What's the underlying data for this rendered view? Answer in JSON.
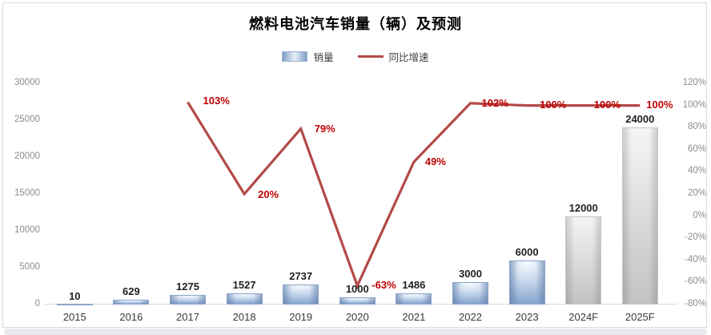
{
  "title": "燃料电池汽车销量（辆）及预测",
  "legend": {
    "bar_label": "销量",
    "line_label": "同比增速"
  },
  "chart_data": {
    "type": "bar+line combo",
    "categories": [
      "2015",
      "2016",
      "2017",
      "2018",
      "2019",
      "2020",
      "2021",
      "2022",
      "2023",
      "2024F",
      "2025F"
    ],
    "series": [
      {
        "name": "销量",
        "type": "bar",
        "axis": "left",
        "values": [
          10,
          629,
          1275,
          1527,
          2737,
          1000,
          1486,
          3000,
          6000,
          12000,
          24000
        ],
        "data_labels": [
          "10",
          "629",
          "1275",
          "1527",
          "2737",
          "1000",
          "1486",
          "3000",
          "6000",
          "12000",
          "24000"
        ],
        "forecast_start_index": 9
      },
      {
        "name": "同比增速",
        "type": "line",
        "axis": "right",
        "values": [
          null,
          null,
          103,
          20,
          79,
          -63,
          49,
          102,
          100,
          100,
          100
        ],
        "data_labels": [
          null,
          null,
          "103%",
          "20%",
          "79%",
          "-63%",
          "49%",
          "102%",
          "100%",
          "100%",
          "100%"
        ]
      }
    ],
    "left_axis": {
      "min": 0,
      "max": 30000,
      "step": 5000,
      "tick_labels": [
        "0",
        "5000",
        "10000",
        "15000",
        "20000",
        "25000",
        "30000"
      ]
    },
    "right_axis": {
      "min": -80,
      "max": 120,
      "step": 20,
      "tick_labels": [
        "-80%",
        "-60%",
        "-40%",
        "-20%",
        "0%",
        "20%",
        "40%",
        "60%",
        "80%",
        "100%",
        "120%"
      ]
    },
    "grid": false,
    "legend_position": "top"
  },
  "colors": {
    "line": "#b34a48",
    "line_label": "#c00000",
    "bar_edge": "#8aa4cb",
    "bar_fill_light": "#e8f0f9",
    "forecast_fill": "#c2c2c2",
    "axis_text": "#8c8c8c",
    "category_text": "#3a3a3a",
    "bar_label_text": "#1f1f1f",
    "border": "#d9d9d9",
    "bottom_strip": "#e9e9f0"
  }
}
